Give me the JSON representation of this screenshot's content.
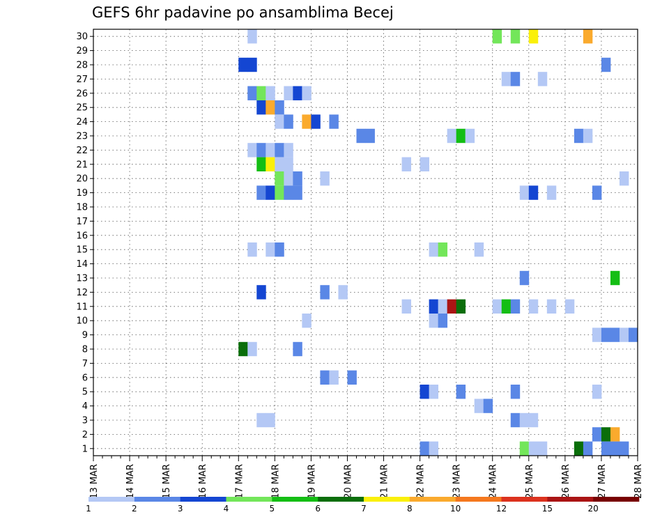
{
  "chart_data": {
    "type": "heatmap",
    "title": "GEFS 6hr padavine po ansamblima Becej",
    "xlabel": "",
    "ylabel": "",
    "x_range": [
      "2026-03-13",
      "2026-03-28"
    ],
    "x_tick_labels": [
      "13 MAR",
      "14 MAR",
      "15 MAR",
      "16 MAR",
      "17 MAR",
      "18 MAR",
      "19 MAR",
      "20 MAR",
      "21 MAR",
      "22 MAR",
      "23 MAR",
      "24 MAR",
      "25 MAR",
      "26 MAR",
      "27 MAR",
      "28 MAR"
    ],
    "y_tick_labels": [
      "1",
      "2",
      "3",
      "4",
      "5",
      "6",
      "7",
      "8",
      "9",
      "10",
      "11",
      "12",
      "13",
      "14",
      "15",
      "16",
      "17",
      "18",
      "19",
      "20",
      "21",
      "22",
      "23",
      "24",
      "25",
      "26",
      "27",
      "28",
      "29",
      "30"
    ],
    "ylim": [
      1,
      30
    ],
    "grid": true,
    "legend": {
      "placement": "bottom",
      "labels": [
        "1",
        "2",
        "3",
        "4",
        "5",
        "6",
        "7",
        "8",
        "10",
        "12",
        "15",
        "20"
      ],
      "colors": [
        "#b4c8f5",
        "#5a87e6",
        "#1446d2",
        "#73e65a",
        "#14be14",
        "#0a6e0a",
        "#faf00a",
        "#faaa2d",
        "#f5781e",
        "#dc321e",
        "#aa1414",
        "#780000"
      ]
    },
    "cells": [
      {
        "t": "17.25",
        "m": 30,
        "v": 1
      },
      {
        "t": "24.0",
        "m": 30,
        "v": 4
      },
      {
        "t": "24.5",
        "m": 30,
        "v": 4
      },
      {
        "t": "25.0",
        "m": 30,
        "v": 7
      },
      {
        "t": "26.5",
        "m": 30,
        "v": 8
      },
      {
        "t": "17.0",
        "m": 28,
        "v": 3
      },
      {
        "t": "17.25",
        "m": 28,
        "v": 3
      },
      {
        "t": "27.0",
        "m": 28,
        "v": 2
      },
      {
        "t": "24.25",
        "m": 27,
        "v": 1
      },
      {
        "t": "24.5",
        "m": 27,
        "v": 2
      },
      {
        "t": "25.25",
        "m": 27,
        "v": 1
      },
      {
        "t": "17.25",
        "m": 26,
        "v": 2
      },
      {
        "t": "17.5",
        "m": 26,
        "v": 4
      },
      {
        "t": "17.75",
        "m": 26,
        "v": 1
      },
      {
        "t": "18.25",
        "m": 26,
        "v": 1
      },
      {
        "t": "18.5",
        "m": 26,
        "v": 3
      },
      {
        "t": "18.75",
        "m": 26,
        "v": 1
      },
      {
        "t": "17.5",
        "m": 25,
        "v": 3
      },
      {
        "t": "17.75",
        "m": 25,
        "v": 8
      },
      {
        "t": "18.0",
        "m": 25,
        "v": 2
      },
      {
        "t": "18.0",
        "m": 24,
        "v": 1
      },
      {
        "t": "18.25",
        "m": 24,
        "v": 2
      },
      {
        "t": "18.75",
        "m": 24,
        "v": 8
      },
      {
        "t": "19.0",
        "m": 24,
        "v": 3
      },
      {
        "t": "19.5",
        "m": 24,
        "v": 2
      },
      {
        "t": "20.25",
        "m": 23,
        "v": 2
      },
      {
        "t": "20.5",
        "m": 23,
        "v": 2
      },
      {
        "t": "22.75",
        "m": 23,
        "v": 1
      },
      {
        "t": "23.0",
        "m": 23,
        "v": 5
      },
      {
        "t": "23.25",
        "m": 23,
        "v": 1
      },
      {
        "t": "26.25",
        "m": 23,
        "v": 2
      },
      {
        "t": "26.5",
        "m": 23,
        "v": 1
      },
      {
        "t": "17.25",
        "m": 22,
        "v": 1
      },
      {
        "t": "17.5",
        "m": 22,
        "v": 2
      },
      {
        "t": "17.75",
        "m": 22,
        "v": 1
      },
      {
        "t": "18.0",
        "m": 22,
        "v": 2
      },
      {
        "t": "18.25",
        "m": 22,
        "v": 1
      },
      {
        "t": "17.5",
        "m": 21,
        "v": 5
      },
      {
        "t": "17.75",
        "m": 21,
        "v": 7
      },
      {
        "t": "18.0",
        "m": 21,
        "v": 1
      },
      {
        "t": "18.25",
        "m": 21,
        "v": 1
      },
      {
        "t": "21.5",
        "m": 21,
        "v": 1
      },
      {
        "t": "22.0",
        "m": 21,
        "v": 1
      },
      {
        "t": "18.0",
        "m": 20,
        "v": 4
      },
      {
        "t": "18.25",
        "m": 20,
        "v": 1
      },
      {
        "t": "18.5",
        "m": 20,
        "v": 2
      },
      {
        "t": "19.25",
        "m": 20,
        "v": 1
      },
      {
        "t": "27.5",
        "m": 20,
        "v": 1
      },
      {
        "t": "17.5",
        "m": 19,
        "v": 2
      },
      {
        "t": "17.75",
        "m": 19,
        "v": 3
      },
      {
        "t": "18.0",
        "m": 19,
        "v": 4
      },
      {
        "t": "18.25",
        "m": 19,
        "v": 2
      },
      {
        "t": "18.5",
        "m": 19,
        "v": 2
      },
      {
        "t": "24.75",
        "m": 19,
        "v": 1
      },
      {
        "t": "25.0",
        "m": 19,
        "v": 3
      },
      {
        "t": "25.5",
        "m": 19,
        "v": 1
      },
      {
        "t": "26.75",
        "m": 19,
        "v": 2
      },
      {
        "t": "17.25",
        "m": 15,
        "v": 1
      },
      {
        "t": "17.75",
        "m": 15,
        "v": 1
      },
      {
        "t": "18.0",
        "m": 15,
        "v": 2
      },
      {
        "t": "22.25",
        "m": 15,
        "v": 1
      },
      {
        "t": "22.5",
        "m": 15,
        "v": 4
      },
      {
        "t": "23.5",
        "m": 15,
        "v": 1
      },
      {
        "t": "24.75",
        "m": 13,
        "v": 2
      },
      {
        "t": "27.25",
        "m": 13,
        "v": 5
      },
      {
        "t": "17.5",
        "m": 12,
        "v": 3
      },
      {
        "t": "19.25",
        "m": 12,
        "v": 2
      },
      {
        "t": "19.75",
        "m": 12,
        "v": 1
      },
      {
        "t": "21.5",
        "m": 11,
        "v": 1
      },
      {
        "t": "22.25",
        "m": 11,
        "v": 3
      },
      {
        "t": "22.5",
        "m": 11,
        "v": 1
      },
      {
        "t": "22.75",
        "m": 11,
        "v": 15
      },
      {
        "t": "23.0",
        "m": 11,
        "v": 6
      },
      {
        "t": "24.0",
        "m": 11,
        "v": 1
      },
      {
        "t": "24.25",
        "m": 11,
        "v": 5
      },
      {
        "t": "24.5",
        "m": 11,
        "v": 2
      },
      {
        "t": "25.0",
        "m": 11,
        "v": 1
      },
      {
        "t": "25.5",
        "m": 11,
        "v": 1
      },
      {
        "t": "26.0",
        "m": 11,
        "v": 1
      },
      {
        "t": "18.75",
        "m": 10,
        "v": 1
      },
      {
        "t": "22.25",
        "m": 10,
        "v": 1
      },
      {
        "t": "22.5",
        "m": 10,
        "v": 2
      },
      {
        "t": "26.75",
        "m": 9,
        "v": 1
      },
      {
        "t": "27.0",
        "m": 9,
        "v": 2
      },
      {
        "t": "27.25",
        "m": 9,
        "v": 2
      },
      {
        "t": "27.5",
        "m": 9,
        "v": 1
      },
      {
        "t": "27.75",
        "m": 9,
        "v": 2
      },
      {
        "t": "17.0",
        "m": 8,
        "v": 6
      },
      {
        "t": "17.25",
        "m": 8,
        "v": 1
      },
      {
        "t": "18.5",
        "m": 8,
        "v": 2
      },
      {
        "t": "19.25",
        "m": 6,
        "v": 2
      },
      {
        "t": "19.5",
        "m": 6,
        "v": 1
      },
      {
        "t": "20.0",
        "m": 6,
        "v": 2
      },
      {
        "t": "22.0",
        "m": 5,
        "v": 3
      },
      {
        "t": "22.25",
        "m": 5,
        "v": 1
      },
      {
        "t": "23.0",
        "m": 5,
        "v": 2
      },
      {
        "t": "24.5",
        "m": 5,
        "v": 2
      },
      {
        "t": "26.75",
        "m": 5,
        "v": 1
      },
      {
        "t": "23.5",
        "m": 4,
        "v": 1
      },
      {
        "t": "23.75",
        "m": 4,
        "v": 2
      },
      {
        "t": "17.5",
        "m": 3,
        "v": 1
      },
      {
        "t": "17.75",
        "m": 3,
        "v": 1
      },
      {
        "t": "24.5",
        "m": 3,
        "v": 2
      },
      {
        "t": "24.75",
        "m": 3,
        "v": 1
      },
      {
        "t": "25.0",
        "m": 3,
        "v": 1
      },
      {
        "t": "26.75",
        "m": 2,
        "v": 2
      },
      {
        "t": "27.0",
        "m": 2,
        "v": 6
      },
      {
        "t": "27.25",
        "m": 2,
        "v": 8
      },
      {
        "t": "22.0",
        "m": 1,
        "v": 2
      },
      {
        "t": "22.25",
        "m": 1,
        "v": 1
      },
      {
        "t": "24.75",
        "m": 1,
        "v": 4
      },
      {
        "t": "25.0",
        "m": 1,
        "v": 1
      },
      {
        "t": "25.25",
        "m": 1,
        "v": 1
      },
      {
        "t": "26.25",
        "m": 1,
        "v": 6
      },
      {
        "t": "26.5",
        "m": 1,
        "v": 2
      },
      {
        "t": "27.0",
        "m": 1,
        "v": 2
      },
      {
        "t": "27.25",
        "m": 1,
        "v": 2
      },
      {
        "t": "27.5",
        "m": 1,
        "v": 2
      }
    ]
  }
}
